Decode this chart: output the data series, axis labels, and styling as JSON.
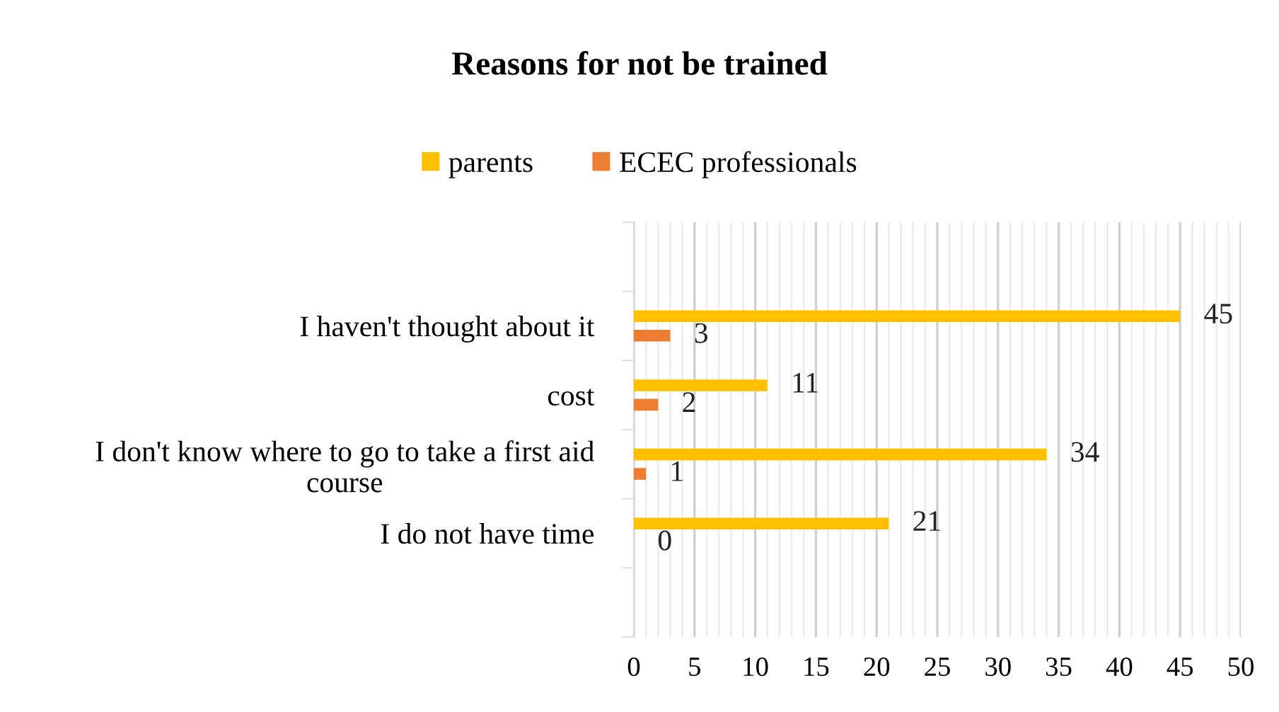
{
  "chart_data": {
    "type": "bar",
    "orientation": "horizontal",
    "title": "Reasons for not be trained",
    "categories": [
      null,
      "I haven't thought about it",
      "cost",
      "I don't know where to go to take a first aid course",
      "I do not have time",
      null
    ],
    "series": [
      {
        "name": "parents",
        "color": "#ffc000",
        "values": [
          null,
          45,
          11,
          34,
          21,
          null
        ]
      },
      {
        "name": "ECEC professionals",
        "color": "#ed7d31",
        "values": [
          null,
          3,
          2,
          1,
          0,
          null
        ]
      }
    ],
    "xlim": [
      0,
      50
    ],
    "xticks": [
      0,
      5,
      10,
      15,
      20,
      25,
      30,
      35,
      40,
      45,
      50
    ],
    "grid": "x",
    "legend": "top",
    "data_labels": true
  }
}
